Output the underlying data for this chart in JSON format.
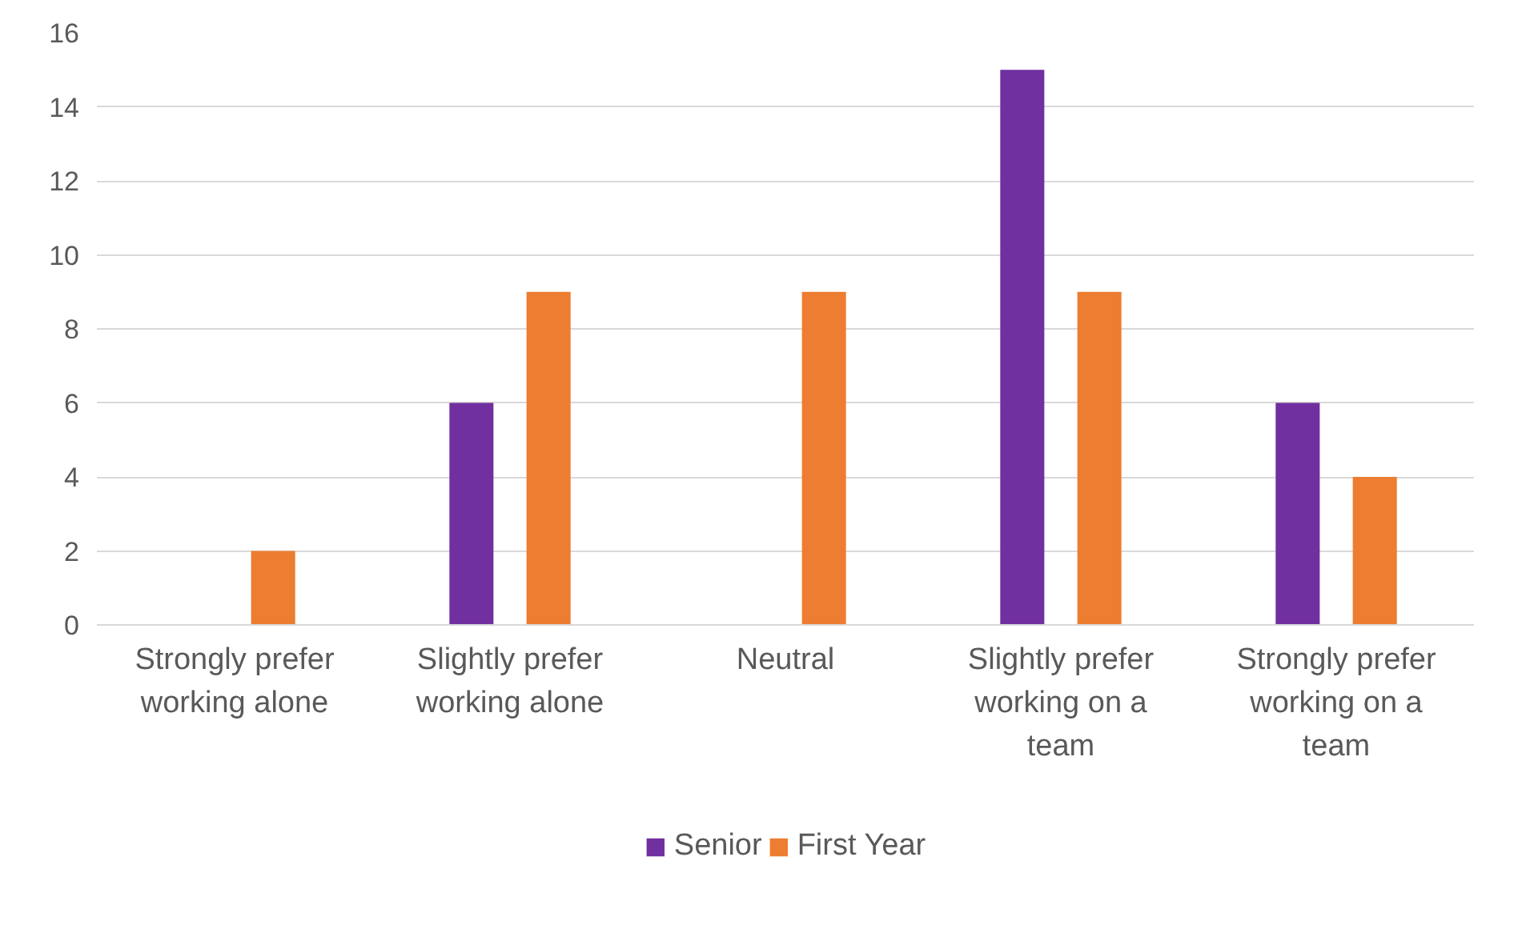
{
  "chart_data": {
    "type": "bar",
    "categories": [
      "Strongly prefer working alone",
      "Slightly prefer working alone",
      "Neutral",
      "Slightly prefer working on a team",
      "Strongly prefer working on a team"
    ],
    "series": [
      {
        "name": "Senior",
        "color": "#7030a0",
        "values": [
          0,
          6,
          0,
          15,
          6
        ]
      },
      {
        "name": "First Year",
        "color": "#ed7d31",
        "values": [
          2,
          9,
          9,
          9,
          4
        ]
      }
    ],
    "ylim": [
      0,
      16
    ],
    "yticks": [
      0,
      2,
      4,
      6,
      8,
      10,
      12,
      14,
      16
    ],
    "grid": "y",
    "legend": "bottom"
  }
}
